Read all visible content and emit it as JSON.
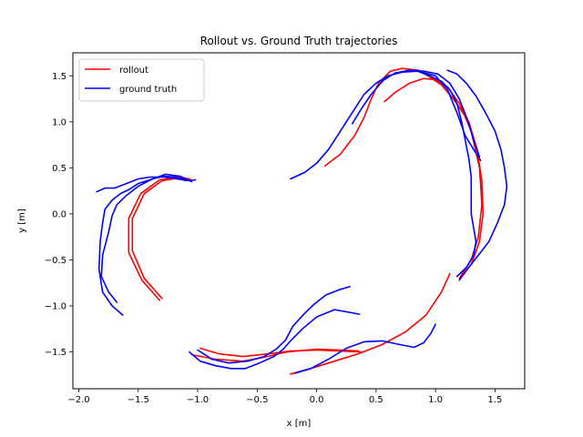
{
  "chart_data": {
    "type": "line",
    "title": "Rollout vs. Ground Truth trajectories",
    "xlabel": "x [m]",
    "ylabel": "y [m]",
    "xlim": [
      -2.05,
      1.75
    ],
    "ylim": [
      -1.9,
      1.75
    ],
    "xticks": [
      -2.0,
      -1.5,
      -1.0,
      -0.5,
      0.0,
      0.5,
      1.0,
      1.5
    ],
    "xtick_labels": [
      "−2.0",
      "−1.5",
      "−1.0",
      "−0.5",
      "0.0",
      "0.5",
      "1.0",
      "1.5"
    ],
    "yticks": [
      -1.5,
      -1.0,
      -0.5,
      0.0,
      0.5,
      1.0,
      1.5
    ],
    "ytick_labels": [
      "−1.5",
      "−1.0",
      "−0.5",
      "0.0",
      "0.5",
      "1.0",
      "1.5"
    ],
    "grid": false,
    "legend_position": "top-left",
    "series": [
      {
        "name": "rollout",
        "color": "#ff0000",
        "segments": [
          [
            [
              -1.3,
              -0.92
            ],
            [
              -1.45,
              -0.7
            ],
            [
              -1.55,
              -0.4
            ],
            [
              -1.55,
              -0.05
            ],
            [
              -1.45,
              0.22
            ],
            [
              -1.3,
              0.36
            ],
            [
              -1.15,
              0.39
            ],
            [
              -1.05,
              0.37
            ]
          ],
          [
            [
              -1.32,
              -0.94
            ],
            [
              -1.47,
              -0.72
            ],
            [
              -1.58,
              -0.42
            ],
            [
              -1.58,
              -0.05
            ],
            [
              -1.48,
              0.22
            ],
            [
              -1.32,
              0.37
            ],
            [
              -1.16,
              0.4
            ],
            [
              -1.07,
              0.38
            ]
          ],
          [
            [
              0.07,
              0.52
            ],
            [
              0.2,
              0.65
            ],
            [
              0.32,
              0.85
            ],
            [
              0.4,
              1.05
            ],
            [
              0.46,
              1.25
            ],
            [
              0.52,
              1.42
            ],
            [
              0.62,
              1.55
            ],
            [
              0.72,
              1.58
            ],
            [
              0.86,
              1.56
            ],
            [
              0.96,
              1.48
            ],
            [
              1.05,
              1.4
            ],
            [
              1.15,
              1.25
            ],
            [
              1.28,
              1.0
            ],
            [
              1.35,
              0.7
            ],
            [
              1.39,
              0.35
            ],
            [
              1.4,
              0.0
            ],
            [
              1.37,
              -0.3
            ],
            [
              1.3,
              -0.55
            ],
            [
              1.2,
              -0.7
            ]
          ],
          [
            [
              0.57,
              1.22
            ],
            [
              0.66,
              1.32
            ],
            [
              0.78,
              1.42
            ],
            [
              0.9,
              1.47
            ],
            [
              1.0,
              1.46
            ],
            [
              1.1,
              1.38
            ],
            [
              1.2,
              1.2
            ],
            [
              1.3,
              0.9
            ],
            [
              1.37,
              0.5
            ],
            [
              1.39,
              0.1
            ],
            [
              1.36,
              -0.25
            ],
            [
              1.3,
              -0.5
            ],
            [
              1.21,
              -0.68
            ]
          ],
          [
            [
              -0.98,
              -1.46
            ],
            [
              -0.82,
              -1.52
            ],
            [
              -0.62,
              -1.55
            ],
            [
              -0.4,
              -1.52
            ],
            [
              -0.22,
              -1.49
            ],
            [
              0.0,
              -1.48
            ],
            [
              0.2,
              -1.49
            ],
            [
              0.38,
              -1.5
            ]
          ],
          [
            [
              -1.05,
              -1.53
            ],
            [
              -0.85,
              -1.58
            ],
            [
              -0.62,
              -1.6
            ],
            [
              -0.45,
              -1.56
            ],
            [
              -0.25,
              -1.5
            ],
            [
              0.0,
              -1.47
            ],
            [
              0.2,
              -1.48
            ],
            [
              0.35,
              -1.49
            ]
          ],
          [
            [
              -0.22,
              -1.74
            ],
            [
              -0.05,
              -1.68
            ],
            [
              0.15,
              -1.6
            ],
            [
              0.35,
              -1.52
            ],
            [
              0.55,
              -1.42
            ],
            [
              0.75,
              -1.28
            ],
            [
              0.92,
              -1.1
            ],
            [
              1.05,
              -0.85
            ],
            [
              1.12,
              -0.65
            ]
          ]
        ]
      },
      {
        "name": "ground truth",
        "color": "#0000ff",
        "segments": [
          [
            [
              -1.85,
              0.24
            ],
            [
              -1.78,
              0.28
            ],
            [
              -1.7,
              0.28
            ],
            [
              -1.6,
              0.33
            ],
            [
              -1.5,
              0.38
            ],
            [
              -1.4,
              0.4
            ],
            [
              -1.28,
              0.4
            ],
            [
              -1.18,
              0.38
            ],
            [
              -1.07,
              0.36
            ],
            [
              -1.02,
              0.37
            ]
          ],
          [
            [
              -1.63,
              -1.1
            ],
            [
              -1.72,
              -1.0
            ],
            [
              -1.8,
              -0.85
            ],
            [
              -1.83,
              -0.6
            ],
            [
              -1.82,
              -0.3
            ],
            [
              -1.8,
              -0.1
            ],
            [
              -1.78,
              0.05
            ],
            [
              -1.72,
              0.15
            ],
            [
              -1.65,
              0.22
            ],
            [
              -1.57,
              0.27
            ],
            [
              -1.5,
              0.33
            ],
            [
              -1.38,
              0.38
            ],
            [
              -1.28,
              0.41
            ],
            [
              -1.18,
              0.4
            ],
            [
              -1.1,
              0.36
            ]
          ],
          [
            [
              -1.68,
              -0.96
            ],
            [
              -1.75,
              -0.85
            ],
            [
              -1.81,
              -0.68
            ],
            [
              -1.8,
              -0.45
            ],
            [
              -1.75,
              -0.2
            ],
            [
              -1.72,
              -0.02
            ],
            [
              -1.68,
              0.1
            ],
            [
              -1.6,
              0.2
            ],
            [
              -1.5,
              0.3
            ],
            [
              -1.38,
              0.38
            ],
            [
              -1.27,
              0.43
            ],
            [
              -1.15,
              0.41
            ],
            [
              -1.05,
              0.35
            ]
          ],
          [
            [
              -0.22,
              0.38
            ],
            [
              -0.1,
              0.45
            ],
            [
              0.0,
              0.55
            ],
            [
              0.1,
              0.7
            ],
            [
              0.2,
              0.9
            ],
            [
              0.3,
              1.1
            ],
            [
              0.4,
              1.3
            ],
            [
              0.5,
              1.42
            ],
            [
              0.6,
              1.5
            ],
            [
              0.72,
              1.54
            ],
            [
              0.85,
              1.55
            ],
            [
              1.0,
              1.5
            ],
            [
              1.1,
              1.35
            ],
            [
              1.18,
              1.1
            ],
            [
              1.25,
              0.85
            ],
            [
              1.32,
              0.7
            ],
            [
              1.38,
              0.58
            ]
          ],
          [
            [
              0.3,
              0.98
            ],
            [
              0.38,
              1.15
            ],
            [
              0.46,
              1.3
            ],
            [
              0.56,
              1.45
            ],
            [
              0.66,
              1.53
            ],
            [
              0.78,
              1.56
            ],
            [
              0.9,
              1.55
            ],
            [
              1.02,
              1.52
            ],
            [
              1.12,
              1.42
            ],
            [
              1.2,
              1.25
            ],
            [
              1.27,
              1.02
            ],
            [
              1.32,
              0.8
            ],
            [
              1.37,
              0.62
            ]
          ],
          [
            [
              1.1,
              1.56
            ],
            [
              1.18,
              1.52
            ],
            [
              1.26,
              1.42
            ],
            [
              1.34,
              1.28
            ],
            [
              1.42,
              1.1
            ],
            [
              1.5,
              0.9
            ],
            [
              1.55,
              0.7
            ],
            [
              1.58,
              0.5
            ],
            [
              1.6,
              0.3
            ],
            [
              1.58,
              0.1
            ],
            [
              1.52,
              -0.1
            ],
            [
              1.45,
              -0.3
            ],
            [
              1.36,
              -0.45
            ],
            [
              1.28,
              -0.58
            ],
            [
              1.2,
              -0.72
            ]
          ],
          [
            [
              1.18,
              -0.68
            ],
            [
              1.26,
              -0.58
            ],
            [
              1.32,
              -0.45
            ],
            [
              1.34,
              -0.3
            ],
            [
              1.32,
              -0.15
            ],
            [
              1.3,
              0.0
            ],
            [
              1.3,
              0.2
            ],
            [
              1.3,
              0.4
            ],
            [
              1.28,
              0.6
            ],
            [
              1.25,
              0.8
            ],
            [
              1.22,
              1.0
            ],
            [
              1.18,
              1.2
            ],
            [
              1.12,
              1.35
            ],
            [
              1.05,
              1.44
            ],
            [
              0.95,
              1.5
            ],
            [
              0.85,
              1.55
            ]
          ],
          [
            [
              -1.07,
              -1.5
            ],
            [
              -0.98,
              -1.6
            ],
            [
              -0.85,
              -1.65
            ],
            [
              -0.72,
              -1.68
            ],
            [
              -0.6,
              -1.68
            ],
            [
              -0.48,
              -1.62
            ],
            [
              -0.36,
              -1.55
            ],
            [
              -0.28,
              -1.47
            ],
            [
              -0.22,
              -1.38
            ],
            [
              -0.12,
              -1.25
            ],
            [
              0.0,
              -1.12
            ],
            [
              0.15,
              -1.04
            ],
            [
              0.36,
              -1.09
            ]
          ],
          [
            [
              -1.0,
              -1.48
            ],
            [
              -0.88,
              -1.58
            ],
            [
              -0.74,
              -1.62
            ],
            [
              -0.58,
              -1.6
            ],
            [
              -0.44,
              -1.55
            ],
            [
              -0.34,
              -1.47
            ],
            [
              -0.26,
              -1.37
            ],
            [
              -0.2,
              -1.22
            ],
            [
              -0.1,
              -1.08
            ],
            [
              -0.02,
              -0.98
            ],
            [
              0.08,
              -0.88
            ],
            [
              0.2,
              -0.82
            ],
            [
              0.28,
              -0.79
            ]
          ],
          [
            [
              -0.18,
              -1.73
            ],
            [
              -0.05,
              -1.68
            ],
            [
              0.1,
              -1.58
            ],
            [
              0.25,
              -1.46
            ],
            [
              0.4,
              -1.39
            ],
            [
              0.55,
              -1.38
            ],
            [
              0.7,
              -1.42
            ],
            [
              0.82,
              -1.45
            ],
            [
              0.9,
              -1.4
            ],
            [
              0.96,
              -1.3
            ],
            [
              1.0,
              -1.2
            ]
          ]
        ]
      }
    ]
  }
}
